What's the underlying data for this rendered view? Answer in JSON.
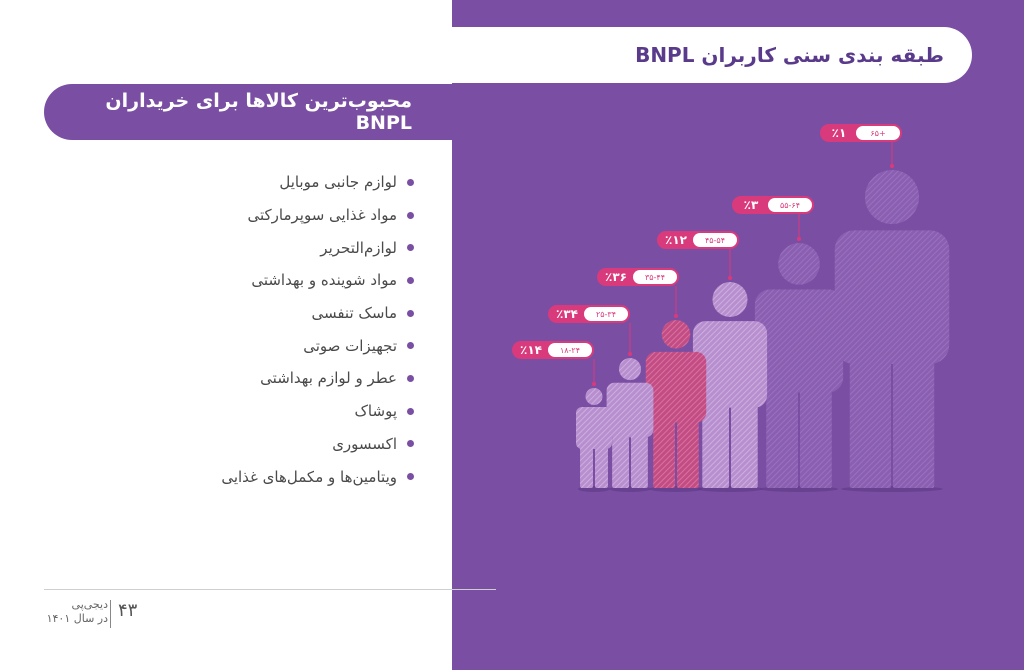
{
  "header": {
    "title": "طبقه بندی سنی کاربران BNPL"
  },
  "subheader": {
    "title": "محبوب‌ترین کالاها برای خریداران BNPL"
  },
  "items": [
    "لوازم جانبی موبایل",
    "مواد غذایی سوپرمارکتی",
    "لوازم‌التحریر",
    "مواد شوینده و بهداشتی",
    "ماسک تنفسی",
    "تجهیزات صوتی",
    "عطر و لوازم بهداشتی",
    "پوشاک",
    "اکسسوری",
    "ویتامین‌ها و مکمل‌های غذایی"
  ],
  "footer": {
    "page": "۴۳",
    "brand_line1": "دیجی‌پی",
    "brand_line2": "در سال ۱۴۰۱"
  },
  "colors": {
    "panel": "#7a4fa3",
    "accent": "#d93a7c",
    "figure_pink": "#cf5a8e",
    "figure_light": "#c9a6d8"
  },
  "chart_data": {
    "type": "bar",
    "title": "طبقه بندی سنی کاربران BNPL",
    "categories": [
      "۱۸-۲۴",
      "۲۵-۳۴",
      "۳۵-۴۴",
      "۴۵-۵۴",
      "۵۵-۶۴",
      "۶۵+"
    ],
    "values": [
      14,
      34,
      36,
      12,
      3,
      1
    ],
    "value_labels": [
      "٪۱۴",
      "٪۳۴",
      "٪۳۶",
      "٪۱۲",
      "٪۳",
      "٪۱"
    ],
    "unit": "%"
  }
}
